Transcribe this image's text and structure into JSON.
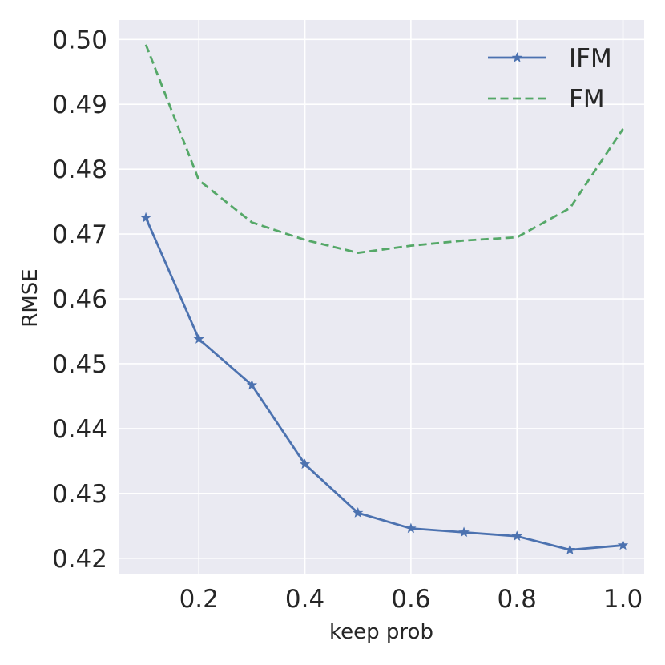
{
  "chart_data": {
    "type": "line",
    "title": "",
    "xlabel": "keep prob",
    "ylabel": "RMSE",
    "xlim": [
      0.05,
      1.04
    ],
    "ylim": [
      0.4175,
      0.503
    ],
    "xticks": [
      0.2,
      0.4,
      0.6,
      0.8,
      1.0
    ],
    "xtick_labels": [
      "0.2",
      "0.4",
      "0.6",
      "0.8",
      "1.0"
    ],
    "yticks": [
      0.42,
      0.43,
      0.44,
      0.45,
      0.46,
      0.47,
      0.48,
      0.49,
      0.5
    ],
    "ytick_labels": [
      "0.42",
      "0.43",
      "0.44",
      "0.45",
      "0.46",
      "0.47",
      "0.48",
      "0.49",
      "0.50"
    ],
    "grid": true,
    "legend_position": "top-right",
    "x": [
      0.1,
      0.2,
      0.3,
      0.4,
      0.5,
      0.6,
      0.7,
      0.8,
      0.9,
      1.0
    ],
    "series": [
      {
        "name": "IFM",
        "color": "#4c72b0",
        "style": "solid",
        "marker": "star",
        "values": [
          0.4725,
          0.4538,
          0.4467,
          0.4345,
          0.427,
          0.4246,
          0.424,
          0.4234,
          0.4213,
          0.422
        ]
      },
      {
        "name": "FM",
        "color": "#55a868",
        "style": "dashed",
        "marker": "none",
        "values": [
          0.4992,
          0.4783,
          0.4718,
          0.4691,
          0.4671,
          0.4682,
          0.469,
          0.4695,
          0.474,
          0.4862
        ]
      }
    ]
  }
}
